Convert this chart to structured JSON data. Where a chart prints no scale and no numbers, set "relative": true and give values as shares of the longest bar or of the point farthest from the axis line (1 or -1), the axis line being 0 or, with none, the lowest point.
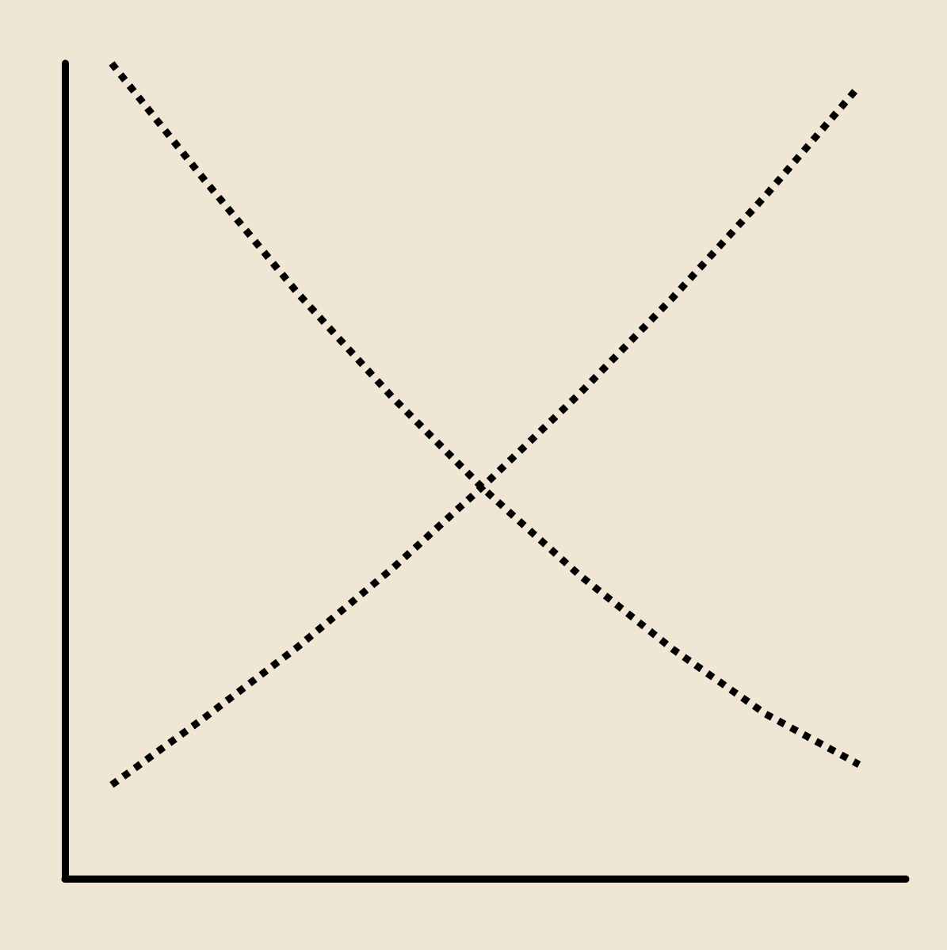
{
  "chart_data": {
    "type": "line",
    "relative": true,
    "categories": [
      null,
      null,
      null,
      null,
      null,
      null,
      null,
      null,
      null
    ],
    "series": [
      {
        "color": "#000000",
        "values": [
          1.0,
          0.856,
          0.717,
          0.591,
          0.476,
          0.373,
          0.282,
          0.202,
          0.14
        ]
      },
      {
        "color": "#000000",
        "values": [
          0.115,
          0.198,
          0.285,
          0.38,
          0.484,
          0.594,
          0.712,
          0.838,
          0.972
        ]
      }
    ],
    "marker": "none",
    "line_style": "dotted",
    "grid": false
  }
}
